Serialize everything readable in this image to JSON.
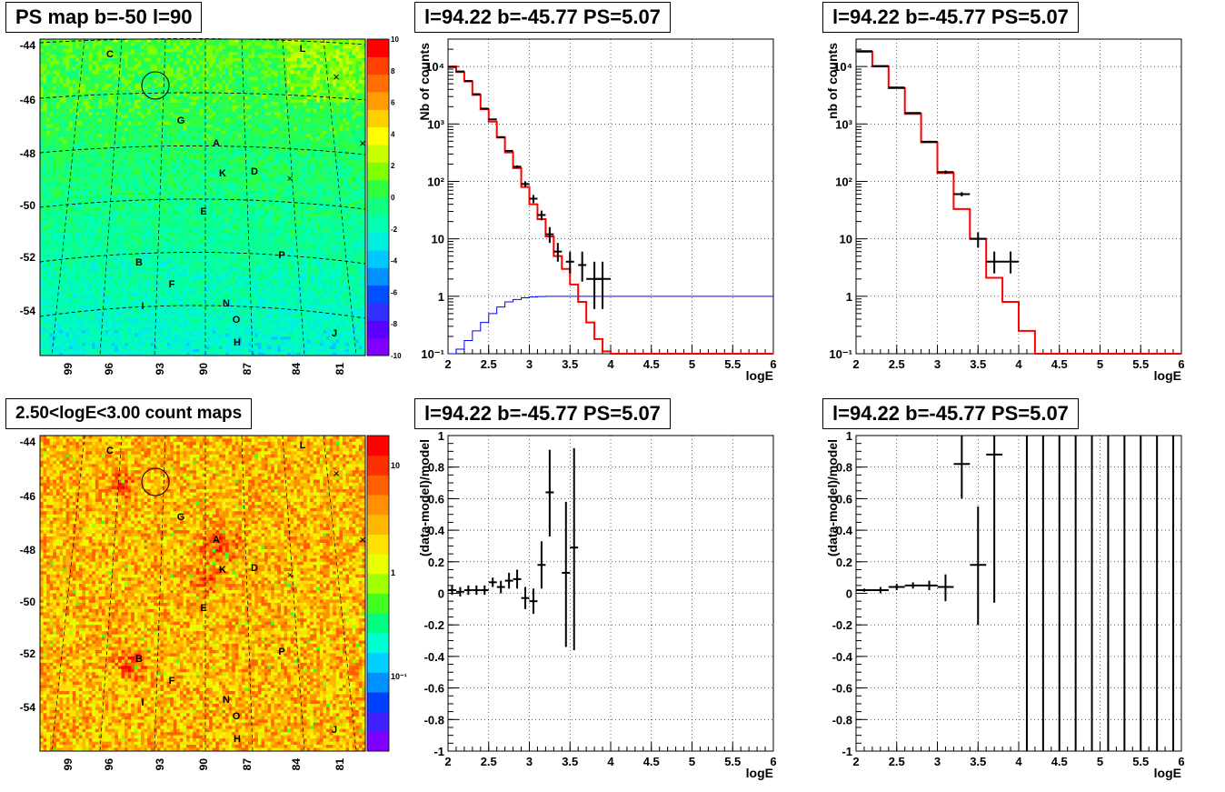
{
  "colors": {
    "data": "#000000",
    "model": "#ff0000",
    "efficiency": "#0000ff",
    "grid": "#000000"
  },
  "titles": {
    "ps_map": "PS map b=-50 l=90",
    "count_map": "2.50<logE<3.00 count maps",
    "spectrum_1": "l=94.22 b=-45.77 PS=5.07",
    "spectrum_2": "l=94.22 b=-45.77 PS=5.07",
    "residual_1": "l=94.22 b=-45.77 PS=5.07",
    "residual_2": "l=94.22 b=-45.77 PS=5.07"
  },
  "chart_data": [
    {
      "id": "ps_map",
      "type": "heatmap",
      "title": "PS map b=-50 l=90",
      "y_ticks": [
        "-44",
        "-46",
        "-48",
        "-50",
        "-52",
        "-54"
      ],
      "x_ticks": [
        "99",
        "96",
        "93",
        "90",
        "87",
        "84",
        "81"
      ],
      "colorbar_ticks": [
        "10",
        "8",
        "6",
        "4",
        "2",
        "0",
        "-2",
        "-4",
        "-6",
        "-8",
        "-10"
      ],
      "zlim": [
        -10,
        10
      ],
      "sources": [
        "C",
        "L",
        "G",
        "A",
        "K",
        "D",
        "E",
        "B",
        "P",
        "F",
        "I",
        "N",
        "O",
        "J",
        "H"
      ]
    },
    {
      "id": "count_map",
      "type": "heatmap",
      "title": "2.50<logE<3.00 count maps",
      "y_ticks": [
        "-44",
        "-46",
        "-48",
        "-50",
        "-52",
        "-54"
      ],
      "x_ticks": [
        "99",
        "96",
        "93",
        "90",
        "87",
        "84",
        "81"
      ],
      "colorbar_ticks": [
        "10",
        "1",
        "10⁻¹"
      ],
      "colorbar_scale": "log",
      "sources": [
        "C",
        "L",
        "G",
        "A",
        "K",
        "D",
        "E",
        "B",
        "P",
        "F",
        "I",
        "N",
        "O",
        "J",
        "H"
      ]
    },
    {
      "id": "spectrum_1",
      "type": "line",
      "title": "l=94.22 b=-45.77 PS=5.07",
      "xlabel": "logE",
      "ylabel": "Nb of counts",
      "xlim": [
        2,
        6
      ],
      "ylim": [
        0.1,
        30000
      ],
      "yscale": "log",
      "x_ticks": [
        "2",
        "2.5",
        "3",
        "3.5",
        "4",
        "4.5",
        "5",
        "5.5",
        "6"
      ],
      "y_ticks": [
        "10⁻¹",
        "1",
        "10",
        "10²",
        "10³",
        "10⁴"
      ],
      "grid": true,
      "model": {
        "edges": [
          2.0,
          2.1,
          2.2,
          2.3,
          2.4,
          2.5,
          2.6,
          2.7,
          2.8,
          2.9,
          3.0,
          3.1,
          3.2,
          3.3,
          3.4,
          3.5,
          3.6,
          3.7,
          3.8,
          3.9,
          4.0,
          4.1,
          6.0
        ],
        "values": [
          10000,
          8000,
          5500,
          3200,
          1800,
          1100,
          580,
          320,
          170,
          80,
          40,
          22,
          11,
          5,
          3,
          1.6,
          0.8,
          0.35,
          0.18,
          0.11,
          0.1,
          0.1
        ]
      },
      "efficiency": {
        "edges": [
          2.0,
          2.1,
          2.2,
          2.3,
          2.4,
          2.5,
          2.6,
          2.7,
          2.8,
          2.9,
          3.0,
          3.1,
          3.2,
          3.3,
          3.4,
          6.0
        ],
        "values": [
          0.1,
          0.12,
          0.17,
          0.25,
          0.35,
          0.5,
          0.65,
          0.8,
          0.88,
          0.94,
          0.97,
          0.99,
          1.0,
          1.0,
          1.0
        ]
      },
      "data": {
        "x": [
          2.05,
          2.15,
          2.25,
          2.35,
          2.45,
          2.55,
          2.65,
          2.75,
          2.85,
          2.95,
          3.05,
          3.15,
          3.25,
          3.35,
          3.5,
          3.65,
          3.8,
          3.9
        ],
        "y": [
          9800,
          8200,
          5600,
          3300,
          1850,
          1200,
          590,
          340,
          180,
          90,
          50,
          26,
          12,
          6,
          4,
          3.5,
          2,
          2
        ],
        "xerr": [
          0.05,
          0.05,
          0.05,
          0.05,
          0.05,
          0.05,
          0.05,
          0.05,
          0.05,
          0.05,
          0.05,
          0.05,
          0.05,
          0.05,
          0.05,
          0.05,
          0.1,
          0.1
        ],
        "ylo": [
          9600,
          8000,
          5500,
          3250,
          1800,
          1170,
          570,
          330,
          170,
          80,
          42,
          21,
          8.5,
          4,
          2.5,
          1.8,
          0.6,
          0.6
        ],
        "yhi": [
          10000,
          8400,
          5700,
          3350,
          1900,
          1230,
          610,
          350,
          190,
          100,
          58,
          31,
          16,
          8.5,
          6,
          6,
          4,
          4
        ]
      }
    },
    {
      "id": "spectrum_2",
      "type": "line",
      "title": "l=94.22 b=-45.77 PS=5.07",
      "xlabel": "logE",
      "ylabel": "nb of counts",
      "xlim": [
        2,
        6
      ],
      "ylim": [
        0.1,
        30000
      ],
      "yscale": "log",
      "x_ticks": [
        "2",
        "2.5",
        "3",
        "3.5",
        "4",
        "4.5",
        "5",
        "5.5",
        "6"
      ],
      "y_ticks": [
        "10⁻¹",
        "1",
        "10",
        "10²",
        "10³",
        "10⁴"
      ],
      "grid": true,
      "model": {
        "edges": [
          2.0,
          2.2,
          2.4,
          2.6,
          2.8,
          3.0,
          3.2,
          3.4,
          3.6,
          3.8,
          4.0,
          4.2,
          6.0
        ],
        "values": [
          18000,
          10000,
          4200,
          1500,
          480,
          140,
          33,
          10,
          2.1,
          0.8,
          0.25,
          0.1
        ]
      },
      "data": {
        "x": [
          2.1,
          2.3,
          2.5,
          2.7,
          2.9,
          3.1,
          3.3,
          3.5,
          3.7,
          3.9
        ],
        "y": [
          18500,
          10200,
          4300,
          1550,
          490,
          145,
          60,
          10,
          4,
          4
        ],
        "xerr": [
          0.1,
          0.1,
          0.1,
          0.1,
          0.1,
          0.1,
          0.1,
          0.1,
          0.1,
          0.1
        ],
        "ylo": [
          18200,
          10000,
          4200,
          1500,
          470,
          135,
          55,
          7,
          2.5,
          2.5
        ],
        "yhi": [
          18800,
          10400,
          4400,
          1600,
          510,
          155,
          65,
          13,
          6,
          6
        ]
      }
    },
    {
      "id": "residual_1",
      "type": "scatter",
      "title": "l=94.22 b=-45.77 PS=5.07",
      "xlabel": "logE",
      "ylabel": "(data-model)/model",
      "xlim": [
        2,
        6
      ],
      "ylim": [
        -1,
        1
      ],
      "x_ticks": [
        "2",
        "2.5",
        "3",
        "3.5",
        "4",
        "4.5",
        "5",
        "5.5",
        "6"
      ],
      "y_ticks": [
        "-1",
        "-0.8",
        "-0.6",
        "-0.4",
        "-0.2",
        "0",
        "0.2",
        "0.4",
        "0.6",
        "0.8",
        "1"
      ],
      "grid": true,
      "data": {
        "x": [
          2.05,
          2.15,
          2.25,
          2.35,
          2.45,
          2.55,
          2.65,
          2.75,
          2.85,
          2.95,
          3.05,
          3.15,
          3.25,
          3.45,
          3.55
        ],
        "y": [
          0.02,
          0.01,
          0.02,
          0.02,
          0.02,
          0.07,
          0.04,
          0.08,
          0.09,
          -0.03,
          -0.05,
          0.18,
          0.64,
          0.13,
          0.29
        ],
        "xerr": [
          0.05,
          0.05,
          0.05,
          0.05,
          0.05,
          0.05,
          0.05,
          0.05,
          0.05,
          0.05,
          0.05,
          0.05,
          0.05,
          0.05,
          0.05
        ],
        "ylo": [
          -0.01,
          -0.02,
          -0.01,
          -0.01,
          -0.01,
          0.04,
          0.0,
          0.03,
          0.03,
          -0.1,
          -0.13,
          0.03,
          0.36,
          -0.34,
          -0.36
        ],
        "yhi": [
          0.05,
          0.04,
          0.05,
          0.05,
          0.05,
          0.1,
          0.08,
          0.13,
          0.15,
          0.04,
          0.03,
          0.33,
          0.91,
          0.58,
          0.92
        ]
      }
    },
    {
      "id": "residual_2",
      "type": "scatter",
      "title": "l=94.22 b=-45.77 PS=5.07",
      "xlabel": "logE",
      "ylabel": "(data-model)/model",
      "xlim": [
        2,
        6
      ],
      "ylim": [
        -1,
        1
      ],
      "x_ticks": [
        "2",
        "2.5",
        "3",
        "3.5",
        "4",
        "4.5",
        "5",
        "5.5",
        "6"
      ],
      "y_ticks": [
        "-1",
        "-0.8",
        "-0.6",
        "-0.4",
        "-0.2",
        "0",
        "0.2",
        "0.4",
        "0.6",
        "0.8",
        "1"
      ],
      "grid": true,
      "data": {
        "x": [
          2.1,
          2.3,
          2.5,
          2.7,
          2.9,
          3.1,
          3.3,
          3.5,
          3.7
        ],
        "y": [
          0.02,
          0.02,
          0.04,
          0.05,
          0.05,
          0.04,
          0.82,
          0.18,
          0.88
        ],
        "xerr": [
          0.1,
          0.1,
          0.1,
          0.1,
          0.1,
          0.1,
          0.1,
          0.1,
          0.1
        ],
        "ylo": [
          0.01,
          0.0,
          0.02,
          0.03,
          0.02,
          -0.05,
          0.6,
          -0.2,
          -0.06
        ],
        "yhi": [
          0.03,
          0.04,
          0.06,
          0.07,
          0.08,
          0.12,
          1.0,
          0.55,
          1.0
        ]
      },
      "vertical_bars_x": [
        4.1,
        4.3,
        4.5,
        4.7,
        4.9,
        5.1,
        5.3,
        5.5,
        5.7,
        5.9
      ]
    }
  ]
}
